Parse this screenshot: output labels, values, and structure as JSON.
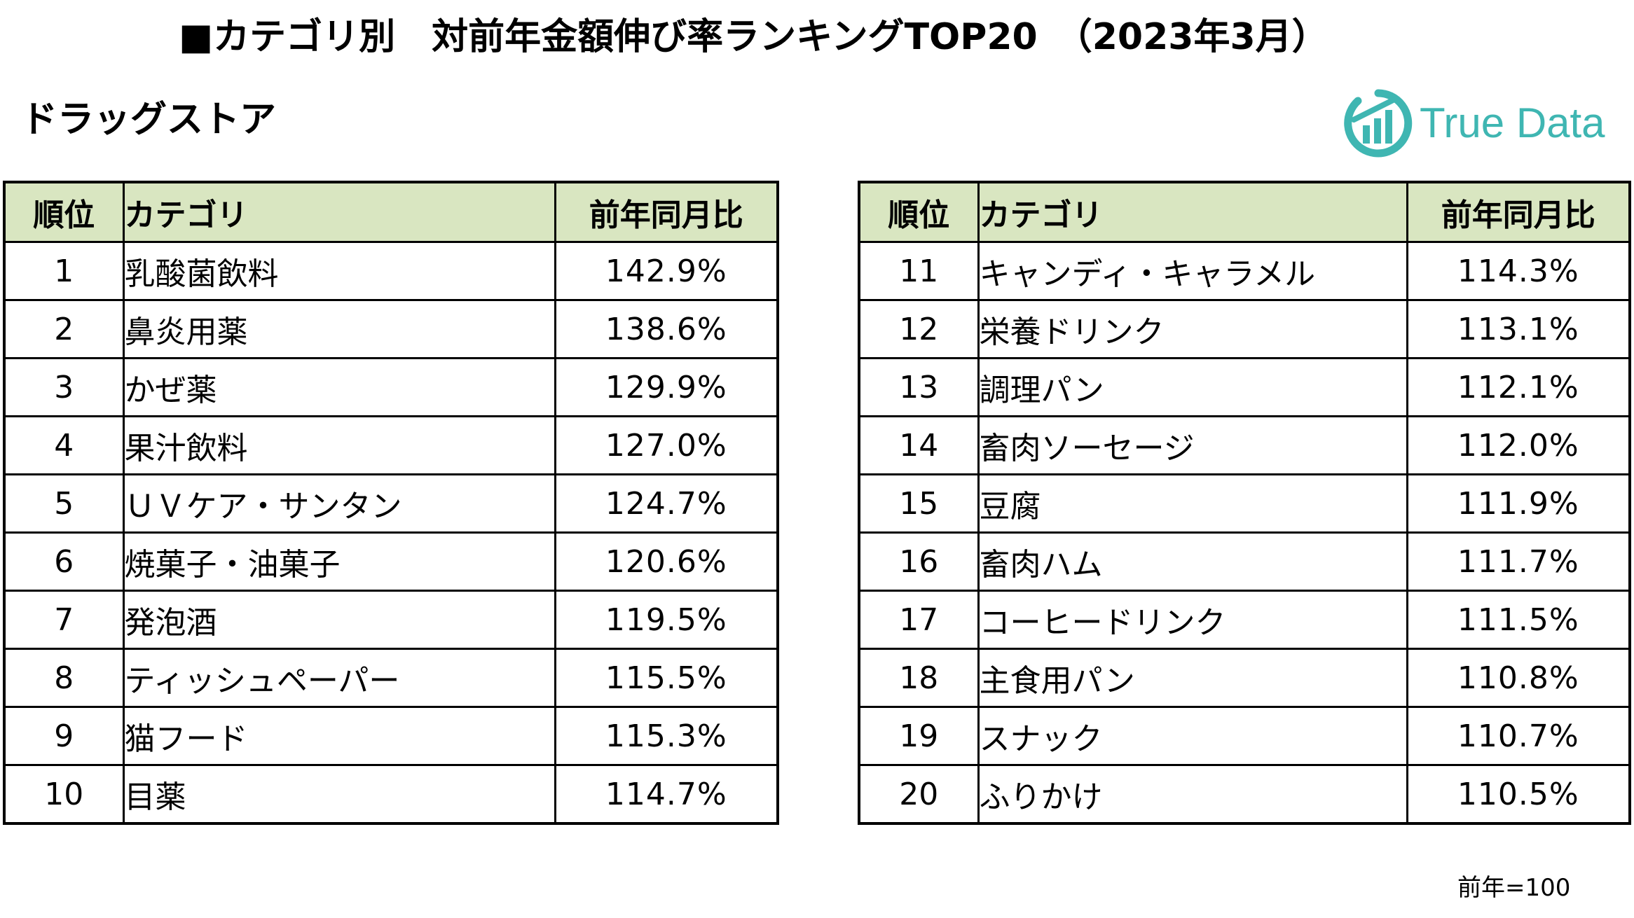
{
  "title": "■カテゴリ別　対前年金額伸び率ランキングTOP20　（2023年3月）",
  "subtitle": "ドラッグストア",
  "logo": {
    "text": "True Data",
    "icon": "bar-chart-circle-logo",
    "color": "#3fb6b2"
  },
  "headers": {
    "rank": "順位",
    "category": "カテゴリ",
    "ratio": "前年同月比"
  },
  "left_table": [
    {
      "rank": "1",
      "category": "乳酸菌飲料",
      "ratio": "142.9%"
    },
    {
      "rank": "2",
      "category": "鼻炎用薬",
      "ratio": "138.6%"
    },
    {
      "rank": "3",
      "category": "かぜ薬",
      "ratio": "129.9%"
    },
    {
      "rank": "4",
      "category": "果汁飲料",
      "ratio": "127.0%"
    },
    {
      "rank": "5",
      "category": "ＵＶケア・サンタン",
      "ratio": "124.7%"
    },
    {
      "rank": "6",
      "category": "焼菓子・油菓子",
      "ratio": "120.6%"
    },
    {
      "rank": "7",
      "category": "発泡酒",
      "ratio": "119.5%"
    },
    {
      "rank": "8",
      "category": "ティッシュペーパー",
      "ratio": "115.5%"
    },
    {
      "rank": "9",
      "category": "猫フード",
      "ratio": "115.3%"
    },
    {
      "rank": "10",
      "category": "目薬",
      "ratio": "114.7%"
    }
  ],
  "right_table": [
    {
      "rank": "11",
      "category": "キャンディ・キャラメル",
      "ratio": "114.3%"
    },
    {
      "rank": "12",
      "category": "栄養ドリンク",
      "ratio": "113.1%"
    },
    {
      "rank": "13",
      "category": "調理パン",
      "ratio": "112.1%"
    },
    {
      "rank": "14",
      "category": "畜肉ソーセージ",
      "ratio": "112.0%"
    },
    {
      "rank": "15",
      "category": "豆腐",
      "ratio": "111.9%"
    },
    {
      "rank": "16",
      "category": "畜肉ハム",
      "ratio": "111.7%"
    },
    {
      "rank": "17",
      "category": "コーヒードリンク",
      "ratio": "111.5%"
    },
    {
      "rank": "18",
      "category": "主食用パン",
      "ratio": "110.8%"
    },
    {
      "rank": "19",
      "category": "スナック",
      "ratio": "110.7%"
    },
    {
      "rank": "20",
      "category": "ふりかけ",
      "ratio": "110.5%"
    }
  ],
  "note": "前年=100"
}
